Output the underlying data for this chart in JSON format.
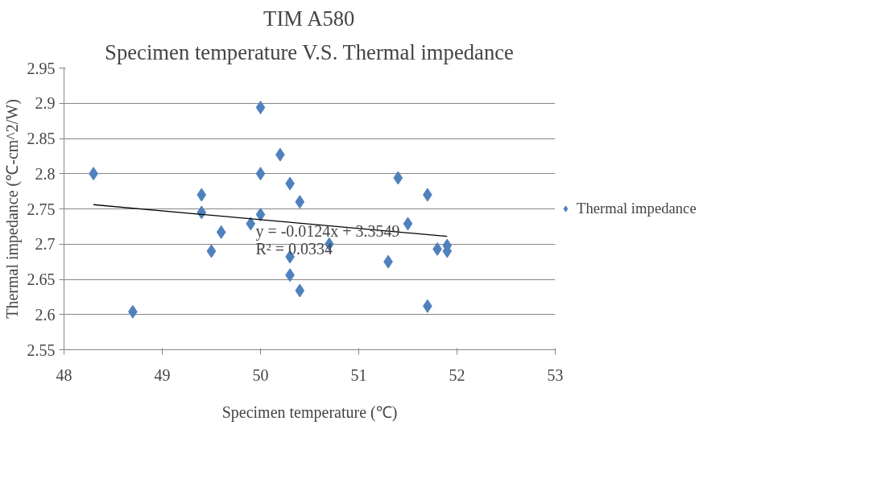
{
  "chart_data": {
    "type": "scatter",
    "title": "TIM A580",
    "subtitle": "Specimen temperature V.S. Thermal impedance",
    "xlabel": "Specimen temperature (℃)",
    "ylabel": "Thermal impedance (℃-cm^2/W)",
    "xlim": [
      48,
      53
    ],
    "xticks": [
      48,
      49,
      50,
      51,
      52,
      53
    ],
    "ylim": [
      2.55,
      2.95
    ],
    "yticks": [
      2.55,
      2.6,
      2.65,
      2.7,
      2.75,
      2.8,
      2.85,
      2.9,
      2.95
    ],
    "grid": "y",
    "legend": "right",
    "marker": "diamond",
    "series": [
      {
        "name": "Thermal impedance",
        "color": "#4f81bd",
        "x": [
          48.3,
          48.7,
          49.4,
          49.4,
          49.5,
          49.6,
          49.9,
          50.0,
          50.0,
          50.0,
          50.2,
          50.3,
          50.3,
          50.3,
          50.4,
          50.4,
          50.7,
          51.3,
          51.4,
          51.5,
          51.7,
          51.7,
          51.8,
          51.9,
          51.9
        ],
        "values": [
          2.8,
          2.604,
          2.77,
          2.745,
          2.69,
          2.717,
          2.729,
          2.894,
          2.8,
          2.742,
          2.827,
          2.786,
          2.682,
          2.656,
          2.76,
          2.634,
          2.7,
          2.675,
          2.794,
          2.729,
          2.77,
          2.612,
          2.693,
          2.698,
          2.69
        ]
      },
      {
        "type": "line",
        "marker": "none",
        "color": "#000000",
        "x": [
          48.3,
          51.9
        ],
        "values": [
          2.756,
          2.711
        ]
      }
    ],
    "annotations": [
      "y = -0.0124x + 3.3549",
      "R² = 0.0334"
    ]
  }
}
